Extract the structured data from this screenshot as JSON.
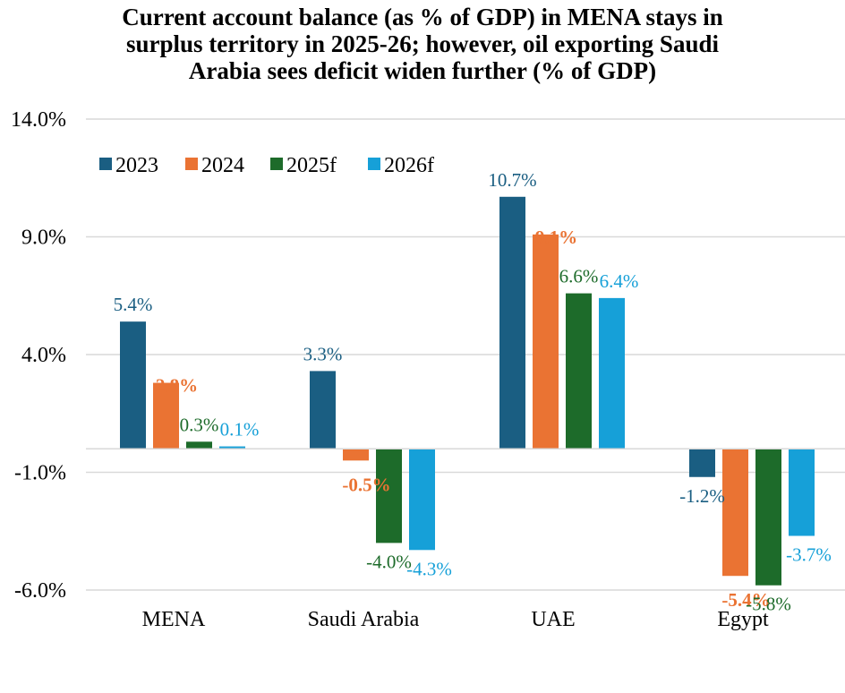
{
  "chart_data": {
    "type": "bar",
    "title_lines": [
      "Current account balance (as % of GDP) in MENA stays in",
      "surplus territory in 2025-26; however, oil exporting Saudi",
      "Arabia sees deficit widen further (% of GDP)"
    ],
    "title": "Current account balance (as % of GDP) in MENA stays in surplus territory in 2025-26; however, oil exporting Saudi Arabia sees deficit widen further (% of GDP)",
    "xlabel": "",
    "ylabel": "",
    "categories": [
      "MENA",
      "Saudi Arabia",
      "UAE",
      "Egypt"
    ],
    "series": [
      {
        "name": "2023",
        "color": "#1a5e82",
        "bold_labels": false,
        "values": [
          5.4,
          3.3,
          10.7,
          -1.2
        ],
        "labels": [
          "5.4%",
          "3.3%",
          "10.7%",
          "-1.2%"
        ]
      },
      {
        "name": "2024",
        "color": "#ea7333",
        "bold_labels": true,
        "values": [
          2.8,
          -0.5,
          9.1,
          -5.4
        ],
        "labels": [
          "2.8%",
          "-0.5%",
          "9.1%",
          "-5.4%"
        ]
      },
      {
        "name": "2025f",
        "color": "#1d6b2a",
        "bold_labels": false,
        "values": [
          0.3,
          -4.0,
          6.6,
          -5.8
        ],
        "labels": [
          "0.3%",
          "-4.0%",
          "6.6%",
          "-5.8%"
        ]
      },
      {
        "name": "2026f",
        "color": "#16a0d8",
        "bold_labels": false,
        "values": [
          0.1,
          -4.3,
          6.4,
          -3.7
        ],
        "labels": [
          "0.1%",
          "-4.3%",
          "6.4%",
          "-3.7%"
        ]
      }
    ],
    "ylim": [
      -6.0,
      14.0
    ],
    "yticks": [
      14.0,
      9.0,
      4.0,
      -1.0,
      -6.0
    ],
    "ytick_labels": [
      "14.0%",
      "9.0%",
      "4.0%",
      "-1.0%",
      "-6.0%"
    ],
    "grid": true,
    "legend_position": "top-left"
  }
}
